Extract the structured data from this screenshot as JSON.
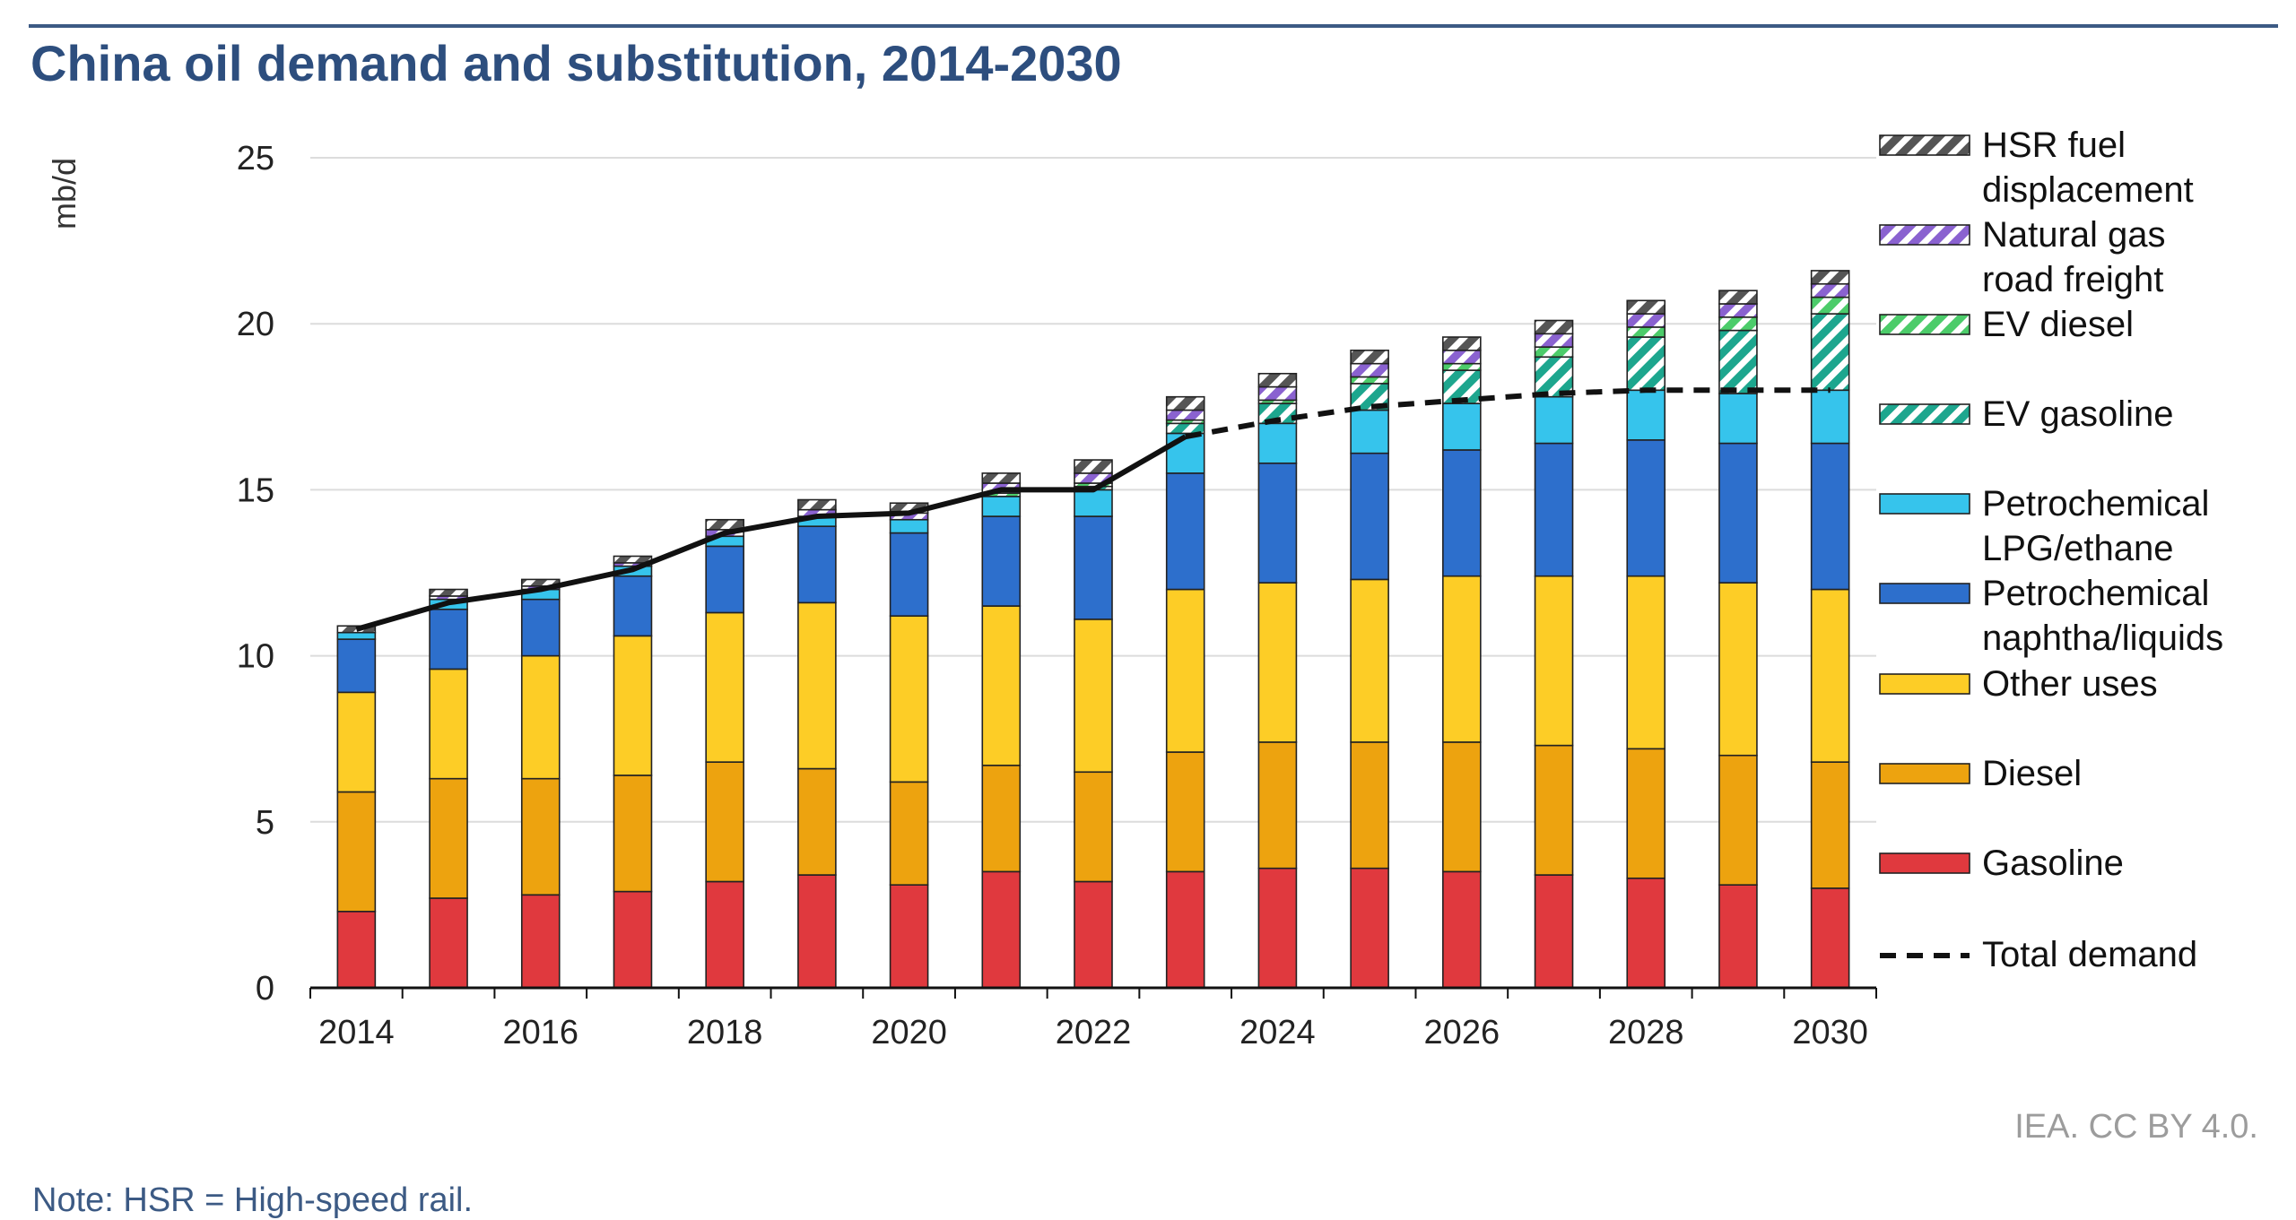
{
  "title": "China oil demand and substitution, 2014-2030",
  "credit": "IEA. CC BY 4.0.",
  "note": "Note: HSR = High-speed rail.",
  "chart_data": {
    "type": "bar",
    "stacked": true,
    "title": "China oil demand and substitution, 2014-2030",
    "ylabel": "mb/d",
    "xlabel": "",
    "ylim": [
      0,
      25
    ],
    "yticks": [
      0,
      5,
      10,
      15,
      20,
      25
    ],
    "xtick_labels": [
      "2014",
      "2016",
      "2018",
      "2020",
      "2022",
      "2024",
      "2026",
      "2028",
      "2030"
    ],
    "categories": [
      "2014",
      "2015",
      "2016",
      "2017",
      "2018",
      "2019",
      "2020",
      "2021",
      "2022",
      "2023",
      "2024",
      "2025",
      "2026",
      "2027",
      "2028",
      "2029",
      "2030"
    ],
    "grid": true,
    "legend_position": "right",
    "series": [
      {
        "name": "Gasoline",
        "legend_label": [
          "Gasoline"
        ],
        "color": "#e0393e",
        "pattern": "solid",
        "values": [
          2.3,
          2.7,
          2.8,
          2.9,
          3.2,
          3.4,
          3.1,
          3.5,
          3.2,
          3.5,
          3.6,
          3.6,
          3.5,
          3.4,
          3.3,
          3.1,
          3.0
        ]
      },
      {
        "name": "Diesel",
        "legend_label": [
          "Diesel"
        ],
        "color": "#eda30f",
        "pattern": "solid",
        "values": [
          3.6,
          3.6,
          3.5,
          3.5,
          3.6,
          3.2,
          3.1,
          3.2,
          3.3,
          3.6,
          3.8,
          3.8,
          3.9,
          3.9,
          3.9,
          3.9,
          3.8
        ]
      },
      {
        "name": "Other uses",
        "legend_label": [
          "Other uses"
        ],
        "color": "#fdcd26",
        "pattern": "solid",
        "values": [
          3.0,
          3.3,
          3.7,
          4.2,
          4.5,
          5.0,
          5.0,
          4.8,
          4.6,
          4.9,
          4.8,
          4.9,
          5.0,
          5.1,
          5.2,
          5.2,
          5.2
        ]
      },
      {
        "name": "Petrochemical naphtha/liquids",
        "legend_label": [
          "Petrochemical",
          "naphtha/liquids"
        ],
        "color": "#2d6fcc",
        "pattern": "solid",
        "values": [
          1.6,
          1.8,
          1.7,
          1.8,
          2.0,
          2.3,
          2.5,
          2.7,
          3.1,
          3.5,
          3.6,
          3.8,
          3.8,
          4.0,
          4.1,
          4.2,
          4.4
        ]
      },
      {
        "name": "Petrochemical LPG/ethane",
        "legend_label": [
          "Petrochemical",
          "LPG/ethane"
        ],
        "color": "#36c4ec",
        "pattern": "solid",
        "values": [
          0.2,
          0.3,
          0.3,
          0.3,
          0.3,
          0.3,
          0.4,
          0.6,
          0.8,
          1.2,
          1.2,
          1.3,
          1.4,
          1.4,
          1.5,
          1.5,
          1.6
        ]
      },
      {
        "name": "EV gasoline",
        "legend_label": [
          "EV gasoline"
        ],
        "color": "#1da68e",
        "pattern": "hatch",
        "values": [
          0.0,
          0.0,
          0.0,
          0.0,
          0.0,
          0.0,
          0.0,
          0.0,
          0.1,
          0.3,
          0.6,
          0.8,
          1.0,
          1.2,
          1.6,
          1.9,
          2.3
        ]
      },
      {
        "name": "EV diesel",
        "legend_label": [
          "EV diesel"
        ],
        "color": "#4ccc6a",
        "pattern": "hatch",
        "values": [
          0.0,
          0.0,
          0.0,
          0.0,
          0.0,
          0.0,
          0.0,
          0.1,
          0.1,
          0.1,
          0.1,
          0.2,
          0.2,
          0.3,
          0.3,
          0.4,
          0.5
        ]
      },
      {
        "name": "Natural gas road freight",
        "legend_label": [
          "Natural gas",
          "road freight"
        ],
        "color": "#8a62d0",
        "pattern": "hatch",
        "values": [
          0.0,
          0.1,
          0.1,
          0.1,
          0.2,
          0.2,
          0.2,
          0.3,
          0.3,
          0.3,
          0.4,
          0.4,
          0.4,
          0.4,
          0.4,
          0.4,
          0.4
        ]
      },
      {
        "name": "HSR fuel displacement",
        "legend_label": [
          "HSR fuel",
          "displacement"
        ],
        "color": "#555555",
        "pattern": "hatch",
        "values": [
          0.2,
          0.2,
          0.2,
          0.2,
          0.3,
          0.3,
          0.3,
          0.3,
          0.4,
          0.4,
          0.4,
          0.4,
          0.4,
          0.4,
          0.4,
          0.4,
          0.4
        ]
      }
    ],
    "total_demand": {
      "name": "Total demand",
      "legend_label": [
        "Total demand"
      ],
      "color": "#111111",
      "values": [
        10.8,
        11.6,
        12.0,
        12.6,
        13.7,
        14.2,
        14.3,
        15.0,
        15.0,
        16.6,
        17.1,
        17.5,
        17.7,
        17.9,
        18.0,
        18.0,
        18.0
      ],
      "solid_until": "2023",
      "dashed_from": "2023"
    }
  }
}
